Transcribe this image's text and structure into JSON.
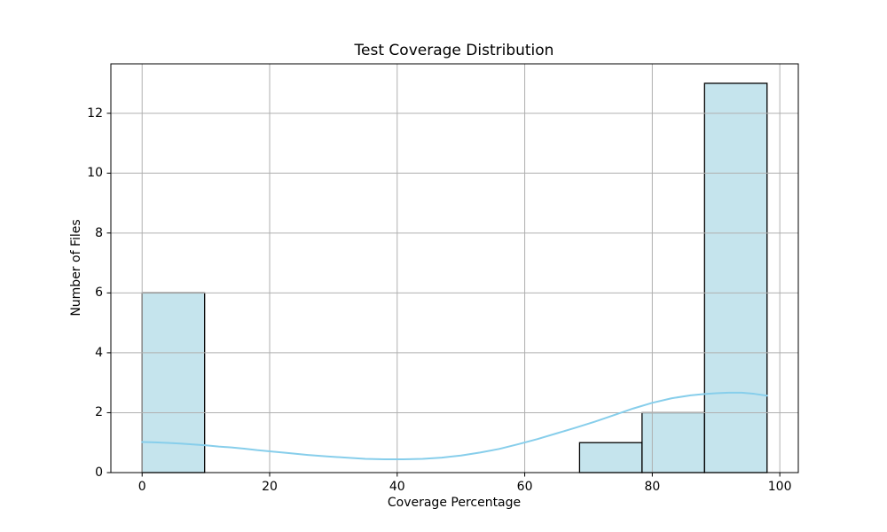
{
  "chart_data": {
    "type": "bar",
    "chart_kind": "histogram_with_kde_overlay",
    "title": "Test Coverage Distribution",
    "xlabel": "Coverage Percentage",
    "ylabel": "Number of Files",
    "xlim": [
      -4.9,
      102.9
    ],
    "ylim": [
      0,
      13.65
    ],
    "x_ticks": [
      0,
      20,
      40,
      60,
      80,
      100
    ],
    "y_ticks": [
      0,
      2,
      4,
      6,
      8,
      10,
      12
    ],
    "grid": true,
    "legend_position": "none",
    "bin_width": 9.8,
    "bars": [
      {
        "bin_start": 0.0,
        "bin_end": 9.8,
        "count": 6
      },
      {
        "bin_start": 68.6,
        "bin_end": 78.4,
        "count": 1
      },
      {
        "bin_start": 78.4,
        "bin_end": 88.2,
        "count": 2
      },
      {
        "bin_start": 88.2,
        "bin_end": 98.0,
        "count": 13
      }
    ],
    "kde": {
      "x": [
        0,
        2,
        4,
        6,
        8,
        10,
        12,
        14,
        16,
        18,
        20,
        23,
        26,
        29,
        32,
        35,
        38,
        41,
        44,
        47,
        50,
        53,
        56,
        59,
        62,
        65,
        68,
        71,
        74,
        77,
        80,
        83,
        86,
        88,
        90,
        92,
        94,
        96,
        98
      ],
      "y": [
        1.02,
        1.01,
        0.99,
        0.97,
        0.94,
        0.91,
        0.87,
        0.84,
        0.8,
        0.75,
        0.71,
        0.65,
        0.59,
        0.54,
        0.5,
        0.46,
        0.445,
        0.445,
        0.46,
        0.5,
        0.57,
        0.67,
        0.79,
        0.95,
        1.12,
        1.31,
        1.5,
        1.7,
        1.92,
        2.14,
        2.33,
        2.48,
        2.58,
        2.62,
        2.65,
        2.67,
        2.67,
        2.63,
        2.57
      ]
    },
    "colors": {
      "background": "#FFFFFF",
      "bar_fill": "#ADD8E6",
      "bar_fill_opacity": 0.7,
      "bar_edge": "#000000",
      "kde_line": "#87CEEB",
      "grid": "#B0B0B0",
      "spine": "#000000",
      "text": "#000000"
    }
  }
}
